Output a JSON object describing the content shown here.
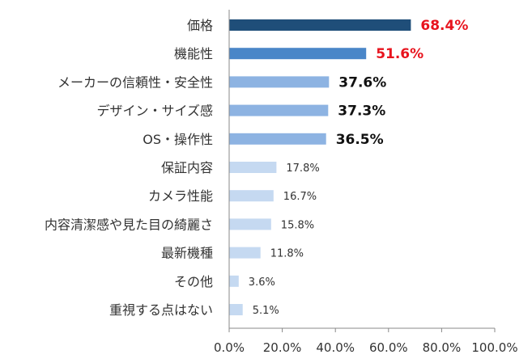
{
  "chart_data": {
    "type": "bar",
    "orientation": "horizontal",
    "title": "",
    "xlabel": "",
    "ylabel": "",
    "xlim": [
      0,
      100
    ],
    "grid": false,
    "legend": "none",
    "categories": [
      "価格",
      "機能性",
      "メーカーの信頼性・安全性",
      "デザイン・サイズ感",
      "OS・操作性",
      "保証内容",
      "カメラ性能",
      "内容清潔感や見た目の綺麗さ",
      "最新機種",
      "その他",
      "重視する点はない"
    ],
    "values": [
      68.4,
      51.6,
      37.6,
      37.3,
      36.5,
      17.8,
      16.7,
      15.8,
      11.8,
      3.6,
      5.1
    ],
    "value_labels": [
      "68.4%",
      "51.6%",
      "37.6%",
      "37.3%",
      "36.5%",
      "17.8%",
      "16.7%",
      "15.8%",
      "11.8%",
      "3.6%",
      "5.1%"
    ],
    "x_tick_labels": [
      "0.0%",
      "20.0%",
      "40.0%",
      "60.0%",
      "80.0%",
      "100.0%"
    ],
    "x_ticks": [
      0,
      20,
      40,
      60,
      80,
      100
    ],
    "bar_colors": [
      "#1f4e79",
      "#4a86c8",
      "#8db3e2",
      "#8db3e2",
      "#8db3e2",
      "#c5d9f1",
      "#c5d9f1",
      "#c5d9f1",
      "#c5d9f1",
      "#c5d9f1",
      "#c5d9f1"
    ],
    "label_colors": [
      "#e8141e",
      "#e8141e",
      "#111111",
      "#111111",
      "#111111",
      "#333333",
      "#333333",
      "#333333",
      "#333333",
      "#333333",
      "#333333"
    ],
    "label_emphasis": [
      true,
      true,
      true,
      true,
      true,
      false,
      false,
      false,
      false,
      false,
      false
    ],
    "axis_color": "#888888"
  }
}
